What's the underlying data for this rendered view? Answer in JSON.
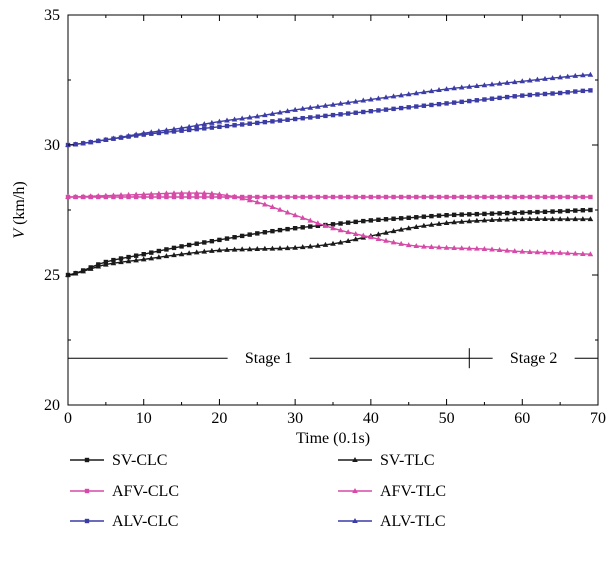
{
  "chart_data": {
    "type": "line",
    "xlabel": "Time (0.1s)",
    "ylabel_italic": "V",
    "ylabel_unit": " (km/h)",
    "xlim": [
      0,
      70
    ],
    "ylim": [
      20,
      35
    ],
    "xticks": [
      "0",
      "10",
      "20",
      "30",
      "40",
      "50",
      "60",
      "70"
    ],
    "yticks": [
      "20",
      "25",
      "30",
      "35"
    ],
    "grid": false,
    "legend_position": "bottom",
    "stages": [
      {
        "label": "Stage 1",
        "x_start": 0,
        "x_end": 53
      },
      {
        "label": "Stage 2",
        "x_start": 53,
        "x_end": 70
      }
    ],
    "stage_y": 21.8,
    "x": [
      0,
      5,
      10,
      15,
      20,
      25,
      30,
      35,
      40,
      45,
      50,
      55,
      60,
      65,
      69
    ],
    "series": [
      {
        "name": "SV-CLC",
        "color": "#1a1a1a",
        "marker": "square",
        "values": [
          25.0,
          25.5,
          25.8,
          26.1,
          26.35,
          26.6,
          26.8,
          26.95,
          27.1,
          27.2,
          27.3,
          27.35,
          27.4,
          27.45,
          27.5
        ]
      },
      {
        "name": "SV-TLC",
        "color": "#1a1a1a",
        "marker": "triangle",
        "values": [
          25.0,
          25.4,
          25.6,
          25.8,
          25.95,
          26.0,
          26.05,
          26.2,
          26.5,
          26.8,
          27.0,
          27.1,
          27.15,
          27.15,
          27.15
        ]
      },
      {
        "name": "AFV-CLC",
        "color": "#d64aa8",
        "marker": "square",
        "values": [
          28.0,
          28.0,
          28.0,
          28.0,
          28.0,
          28.0,
          28.0,
          28.0,
          28.0,
          28.0,
          28.0,
          28.0,
          28.0,
          28.0,
          28.0
        ]
      },
      {
        "name": "AFV-TLC",
        "color": "#d64aa8",
        "marker": "triangle",
        "values": [
          28.0,
          28.05,
          28.1,
          28.15,
          28.1,
          27.8,
          27.3,
          26.8,
          26.45,
          26.15,
          26.05,
          26.0,
          25.9,
          25.85,
          25.8
        ]
      },
      {
        "name": "ALV-CLC",
        "color": "#3c3ca6",
        "marker": "square",
        "values": [
          30.0,
          30.2,
          30.4,
          30.55,
          30.7,
          30.85,
          31.0,
          31.15,
          31.3,
          31.45,
          31.6,
          31.75,
          31.9,
          32.0,
          32.1
        ]
      },
      {
        "name": "ALV-TLC",
        "color": "#3c3ca6",
        "marker": "triangle",
        "values": [
          30.0,
          30.2,
          30.45,
          30.65,
          30.9,
          31.1,
          31.35,
          31.55,
          31.75,
          31.95,
          32.15,
          32.3,
          32.45,
          32.6,
          32.7
        ]
      }
    ]
  }
}
